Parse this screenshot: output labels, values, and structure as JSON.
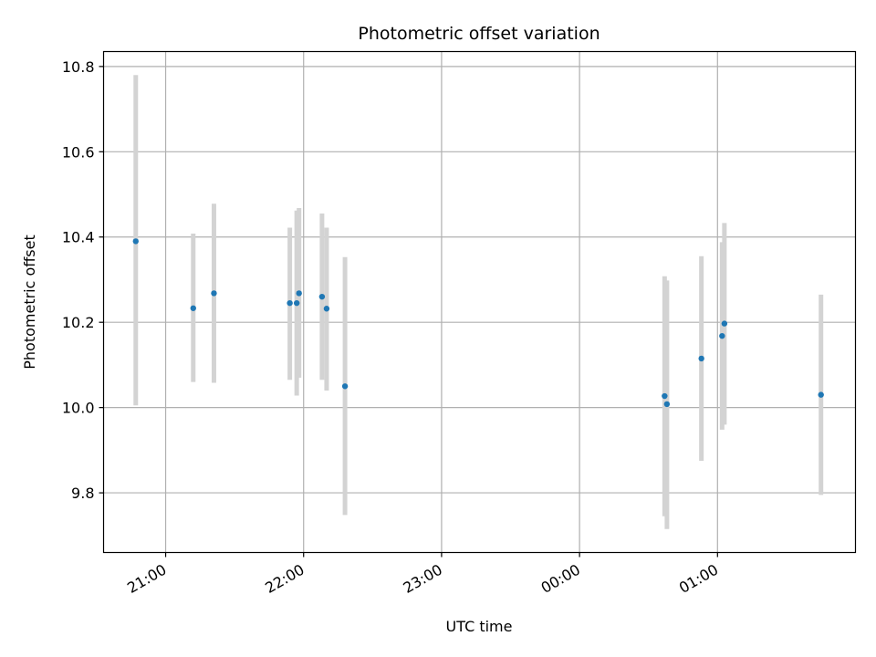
{
  "chart_data": {
    "type": "scatter",
    "title": "Photometric offset variation",
    "xlabel": "UTC time",
    "ylabel": "Photometric offset",
    "x_is_time": true,
    "xlim": [
      "20:33",
      "02:00"
    ],
    "ylim": [
      9.66,
      10.835
    ],
    "x_ticks": [
      "21:00",
      "22:00",
      "23:00",
      "00:00",
      "01:00"
    ],
    "y_ticks": [
      9.8,
      10.0,
      10.2,
      10.4,
      10.6,
      10.8
    ],
    "y_tick_labels": [
      "9.8",
      "10.0",
      "10.2",
      "10.4",
      "10.6",
      "10.8"
    ],
    "grid": true,
    "marker_color": "#1f77b4",
    "errorbar_color": "#d3d3d3",
    "points": [
      {
        "t": "20:47",
        "y": 10.39,
        "lo": 10.005,
        "hi": 10.78
      },
      {
        "t": "21:12",
        "y": 10.233,
        "lo": 10.06,
        "hi": 10.408
      },
      {
        "t": "21:21",
        "y": 10.268,
        "lo": 10.058,
        "hi": 10.478
      },
      {
        "t": "21:54",
        "y": 10.245,
        "lo": 10.065,
        "hi": 10.422
      },
      {
        "t": "21:57",
        "y": 10.245,
        "lo": 10.028,
        "hi": 10.462
      },
      {
        "t": "21:58",
        "y": 10.268,
        "lo": 10.07,
        "hi": 10.468
      },
      {
        "t": "22:08",
        "y": 10.26,
        "lo": 10.065,
        "hi": 10.455
      },
      {
        "t": "22:10",
        "y": 10.232,
        "lo": 10.04,
        "hi": 10.422
      },
      {
        "t": "22:18",
        "y": 10.05,
        "lo": 9.748,
        "hi": 10.353
      },
      {
        "t": "00:37",
        "y": 10.027,
        "lo": 9.745,
        "hi": 10.308
      },
      {
        "t": "00:38",
        "y": 10.008,
        "lo": 9.715,
        "hi": 10.298
      },
      {
        "t": "00:53",
        "y": 10.115,
        "lo": 9.875,
        "hi": 10.355
      },
      {
        "t": "01:02",
        "y": 10.168,
        "lo": 9.948,
        "hi": 10.388
      },
      {
        "t": "01:03",
        "y": 10.197,
        "lo": 9.96,
        "hi": 10.433
      },
      {
        "t": "01:45",
        "y": 10.03,
        "lo": 9.795,
        "hi": 10.265
      }
    ]
  }
}
